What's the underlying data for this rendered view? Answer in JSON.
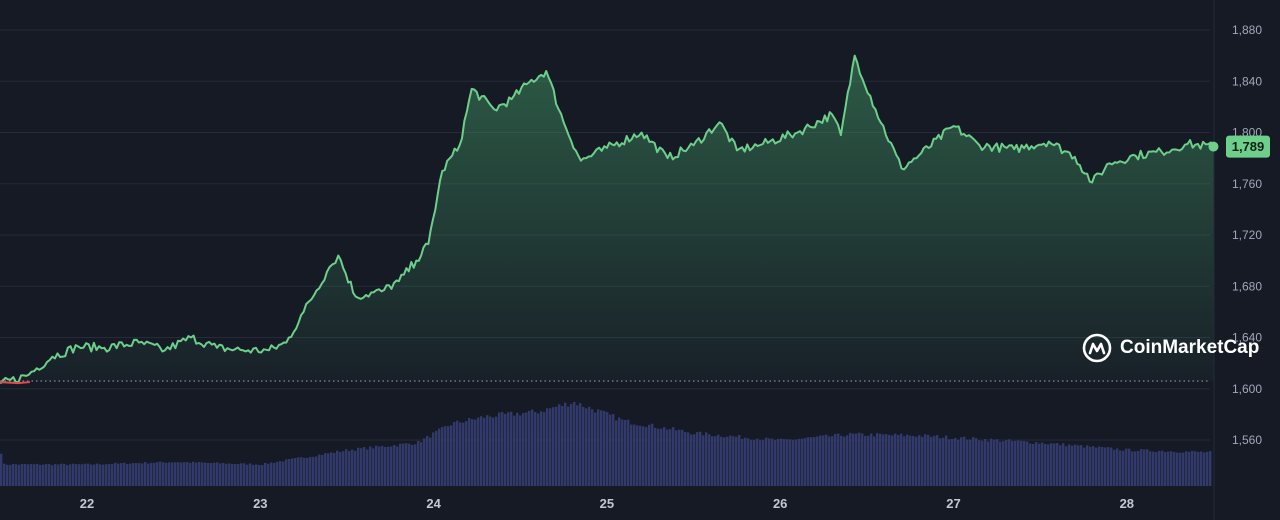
{
  "chart_data": {
    "type": "area",
    "x_categories": [
      "22",
      "23",
      "24",
      "25",
      "26",
      "27",
      "28"
    ],
    "y_ticks": [
      1560,
      1600,
      1640,
      1680,
      1720,
      1760,
      1800,
      1840,
      1880
    ],
    "ylim": [
      1526,
      1898
    ],
    "baseline": 1606,
    "grid": true,
    "current_value": 1789,
    "current_label": "1,789",
    "series": [
      {
        "values": [
          [
            21.5,
            1604
          ],
          [
            21.65,
            1610
          ],
          [
            21.8,
            1625
          ],
          [
            21.95,
            1633
          ],
          [
            22.1,
            1632
          ],
          [
            22.3,
            1636
          ],
          [
            22.45,
            1630
          ],
          [
            22.6,
            1640
          ],
          [
            22.75,
            1632
          ],
          [
            22.9,
            1630
          ],
          [
            23.05,
            1630
          ],
          [
            23.15,
            1636
          ],
          [
            23.25,
            1660
          ],
          [
            23.4,
            1695
          ],
          [
            23.45,
            1704
          ],
          [
            23.55,
            1672
          ],
          [
            23.7,
            1676
          ],
          [
            23.8,
            1684
          ],
          [
            23.9,
            1700
          ],
          [
            23.97,
            1713
          ],
          [
            24.05,
            1770
          ],
          [
            24.15,
            1790
          ],
          [
            24.22,
            1834
          ],
          [
            24.35,
            1818
          ],
          [
            24.45,
            1826
          ],
          [
            24.55,
            1839
          ],
          [
            24.65,
            1848
          ],
          [
            24.75,
            1808
          ],
          [
            24.85,
            1778
          ],
          [
            25.0,
            1788
          ],
          [
            25.2,
            1800
          ],
          [
            25.35,
            1780
          ],
          [
            25.5,
            1790
          ],
          [
            25.65,
            1808
          ],
          [
            25.75,
            1786
          ],
          [
            25.9,
            1791
          ],
          [
            26.1,
            1800
          ],
          [
            26.3,
            1814
          ],
          [
            26.35,
            1798
          ],
          [
            26.43,
            1860
          ],
          [
            26.55,
            1818
          ],
          [
            26.7,
            1772
          ],
          [
            26.8,
            1782
          ],
          [
            27.0,
            1805
          ],
          [
            27.15,
            1790
          ],
          [
            27.35,
            1787
          ],
          [
            27.55,
            1793
          ],
          [
            27.7,
            1781
          ],
          [
            27.8,
            1761
          ],
          [
            27.9,
            1776
          ],
          [
            28.05,
            1782
          ],
          [
            28.2,
            1785
          ],
          [
            28.35,
            1791
          ],
          [
            28.5,
            1789
          ]
        ]
      },
      {
        "name": "volume",
        "values": [
          [
            21.5,
            0.18
          ],
          [
            22.0,
            0.18
          ],
          [
            22.5,
            0.2
          ],
          [
            23.0,
            0.18
          ],
          [
            23.5,
            0.3
          ],
          [
            23.9,
            0.36
          ],
          [
            24.1,
            0.52
          ],
          [
            24.3,
            0.58
          ],
          [
            24.6,
            0.62
          ],
          [
            24.8,
            0.7
          ],
          [
            25.1,
            0.54
          ],
          [
            25.5,
            0.44
          ],
          [
            26.0,
            0.38
          ],
          [
            26.4,
            0.43
          ],
          [
            26.8,
            0.42
          ],
          [
            27.5,
            0.36
          ],
          [
            28.0,
            0.3
          ],
          [
            28.5,
            0.28
          ]
        ]
      }
    ]
  },
  "watermark": {
    "text": "CoinMarketCap"
  },
  "colors": {
    "line": "#6ccf8a",
    "line_below_baseline": "#e5484d",
    "volume": "#323a6c",
    "grid": "#262b39",
    "baseline": "#8c93a8",
    "background": "#161a25"
  }
}
